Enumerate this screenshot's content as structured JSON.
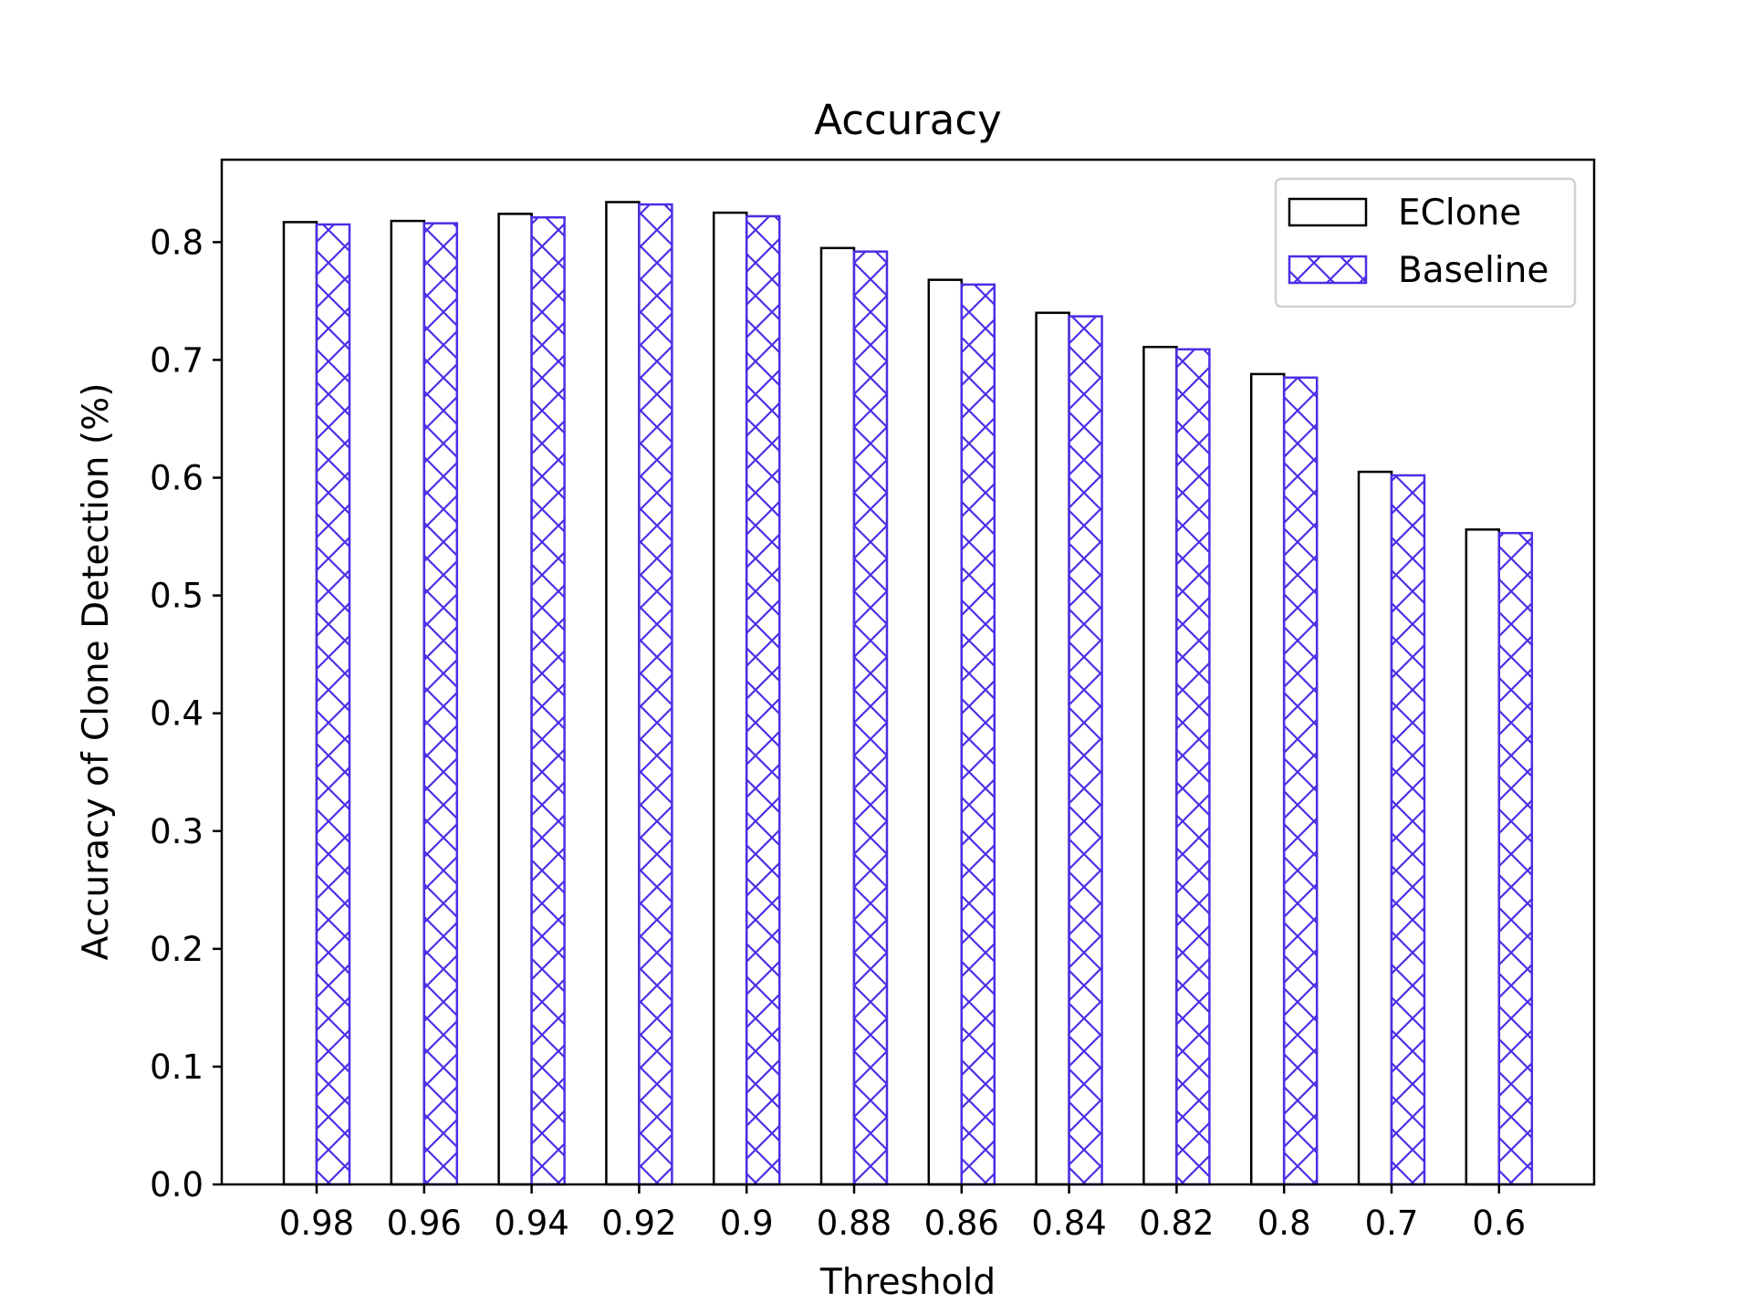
{
  "chart_data": {
    "type": "bar",
    "title": "Accuracy",
    "xlabel": "Threshold",
    "ylabel": "Accuracy of Clone Detection (%)",
    "categories": [
      "0.98",
      "0.96",
      "0.94",
      "0.92",
      "0.9",
      "0.88",
      "0.86",
      "0.84",
      "0.82",
      "0.8",
      "0.7",
      "0.6"
    ],
    "series": [
      {
        "name": "EClone",
        "style": "white fill, black edge",
        "edge_color": "#000000",
        "values": [
          0.817,
          0.818,
          0.824,
          0.834,
          0.825,
          0.795,
          0.768,
          0.74,
          0.711,
          0.688,
          0.605,
          0.556
        ]
      },
      {
        "name": "Baseline",
        "style": "white fill, cross-hatched",
        "edge_color": "#4b2ee6",
        "values": [
          0.815,
          0.816,
          0.821,
          0.832,
          0.822,
          0.792,
          0.764,
          0.737,
          0.709,
          0.685,
          0.602,
          0.553
        ]
      }
    ],
    "ylim": [
      0,
      0.87
    ],
    "yticks": [
      "0.0",
      "0.1",
      "0.2",
      "0.3",
      "0.4",
      "0.5",
      "0.6",
      "0.7",
      "0.8"
    ],
    "grid": false,
    "legend_position": "top-right"
  }
}
